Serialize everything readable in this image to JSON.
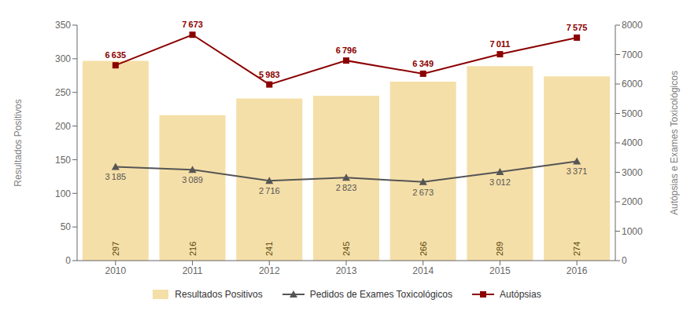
{
  "chart_data": {
    "type": "bar",
    "categories": [
      "2010",
      "2011",
      "2012",
      "2013",
      "2014",
      "2015",
      "2016"
    ],
    "ylabel": "Resultados Positivos",
    "y2label": "Autópsias e Exames Toxicológicos",
    "ylim": [
      0,
      350
    ],
    "yticks": [
      0,
      50,
      100,
      150,
      200,
      250,
      300,
      350
    ],
    "y2lim": [
      0,
      8000
    ],
    "y2ticks": [
      0,
      1000,
      2000,
      3000,
      4000,
      5000,
      6000,
      7000,
      8000
    ],
    "grid": false,
    "legend": "bottom",
    "data_labels": true,
    "series": [
      {
        "name": "Resultados Positivos",
        "type": "bar",
        "color": "#F5DFA8",
        "values": [
          297,
          216,
          241,
          245,
          266,
          289,
          274
        ]
      },
      {
        "name": "Pedidos de Exames Toxicológicos",
        "type": "line",
        "axis": "y2",
        "color": "#555555",
        "marker": "triangle",
        "values": [
          3185,
          3089,
          2716,
          2823,
          2673,
          3012,
          3371
        ],
        "value_labels": [
          "3 185",
          "3 089",
          "2 716",
          "2 823",
          "2 673",
          "3 012",
          "3 371"
        ]
      },
      {
        "name": "Autópsias",
        "type": "line",
        "axis": "y2",
        "color": "#8B0000",
        "marker": "square",
        "values": [
          6635,
          7673,
          5983,
          6796,
          6349,
          7011,
          7575
        ],
        "value_labels": [
          "6 635",
          "7 673",
          "5 983",
          "6 796",
          "6 349",
          "7 011",
          "7 575"
        ]
      }
    ]
  }
}
